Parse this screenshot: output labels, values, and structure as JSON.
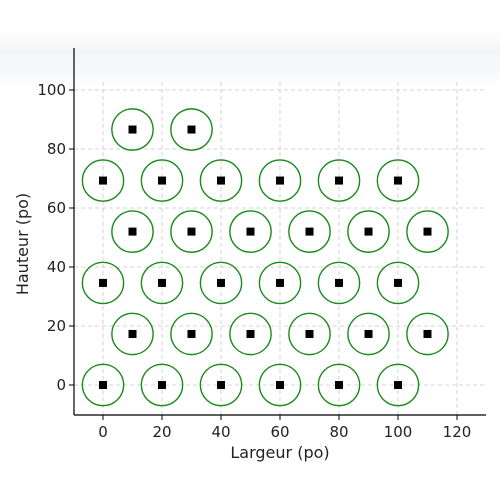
{
  "chart_data": {
    "type": "scatter",
    "title": "",
    "xlabel": "Largeur (po)",
    "ylabel": "Hauteur (po)",
    "xlim": [
      -10,
      130
    ],
    "ylim": [
      -10,
      115
    ],
    "xticks": [
      0,
      20,
      40,
      60,
      80,
      100,
      120
    ],
    "yticks": [
      0,
      20,
      40,
      60,
      80,
      100
    ],
    "grid": true,
    "colors": {
      "circle": "#1a8a1a",
      "marker": "#000000"
    },
    "points": [
      {
        "x": 0,
        "y": 0
      },
      {
        "x": 20,
        "y": 0
      },
      {
        "x": 40,
        "y": 0
      },
      {
        "x": 60,
        "y": 0
      },
      {
        "x": 80,
        "y": 0
      },
      {
        "x": 100,
        "y": 0
      },
      {
        "x": 10,
        "y": 17.3
      },
      {
        "x": 30,
        "y": 17.3
      },
      {
        "x": 50,
        "y": 17.3
      },
      {
        "x": 70,
        "y": 17.3
      },
      {
        "x": 90,
        "y": 17.3
      },
      {
        "x": 110,
        "y": 17.3
      },
      {
        "x": 0,
        "y": 34.6
      },
      {
        "x": 20,
        "y": 34.6
      },
      {
        "x": 40,
        "y": 34.6
      },
      {
        "x": 60,
        "y": 34.6
      },
      {
        "x": 80,
        "y": 34.6
      },
      {
        "x": 100,
        "y": 34.6
      },
      {
        "x": 10,
        "y": 52
      },
      {
        "x": 30,
        "y": 52
      },
      {
        "x": 50,
        "y": 52
      },
      {
        "x": 70,
        "y": 52
      },
      {
        "x": 90,
        "y": 52
      },
      {
        "x": 110,
        "y": 52
      },
      {
        "x": 0,
        "y": 69.3
      },
      {
        "x": 20,
        "y": 69.3
      },
      {
        "x": 40,
        "y": 69.3
      },
      {
        "x": 60,
        "y": 69.3
      },
      {
        "x": 80,
        "y": 69.3
      },
      {
        "x": 100,
        "y": 69.3
      },
      {
        "x": 10,
        "y": 86.6
      },
      {
        "x": 30,
        "y": 86.6
      }
    ],
    "circle_radius": 7
  }
}
